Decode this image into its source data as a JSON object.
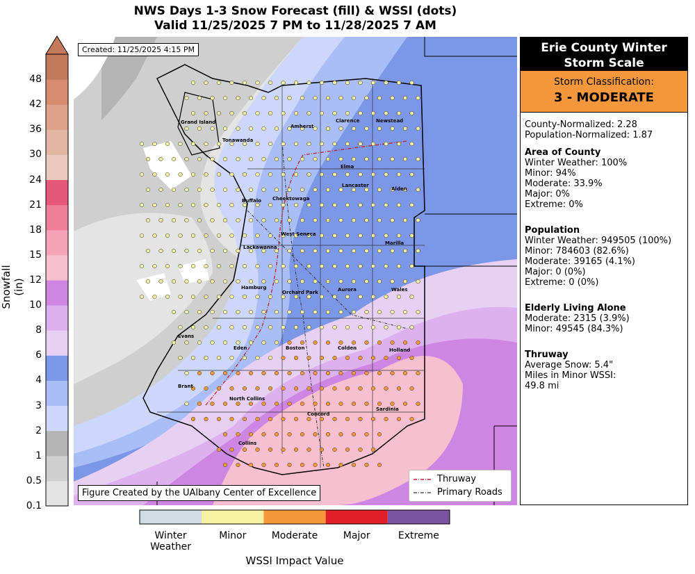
{
  "title": {
    "line1": "NWS Days 1-3 Snow Forecast (fill) & WSSI (dots)",
    "line2": "Valid 11/25/2025 7 PM to 11/28/2025 7 AM"
  },
  "created_label": "Created: 11/25/2025 4:15 PM",
  "credit_label": "Figure Created by the UAlbany Center of Excellence",
  "colorbar": {
    "axis_label": "Snowfall (in)",
    "ticks": [
      "0.1",
      "0.5",
      "1",
      "2",
      "3",
      "4",
      "6",
      "8",
      "10",
      "12",
      "15",
      "18",
      "21",
      "24",
      "30",
      "36",
      "42",
      "48"
    ],
    "colors": [
      "#e4e4e4",
      "#cfcfcf",
      "#b4b4b4",
      "#ccd7fb",
      "#a9bdf6",
      "#7c97e8",
      "#e8d0f5",
      "#ddb0ee",
      "#cf86e3",
      "#f7bfd0",
      "#f5a3b8",
      "#f07e98",
      "#e65878",
      "#ebcabd",
      "#e3b6a3",
      "#dea18a",
      "#d98b70",
      "#c27a5b"
    ]
  },
  "legend": {
    "thruway": "Thruway",
    "primary_roads": "Primary Roads",
    "thruway_color": "#c0202a",
    "roads_color": "#333333"
  },
  "towns": [
    {
      "name": "Grand Island"
    },
    {
      "name": "Tonawanda"
    },
    {
      "name": "Amherst"
    },
    {
      "name": "Clarence"
    },
    {
      "name": "Newstead"
    },
    {
      "name": "Elma"
    },
    {
      "name": "Lancaster"
    },
    {
      "name": "Alden"
    },
    {
      "name": "Buffalo"
    },
    {
      "name": "Cheektowaga"
    },
    {
      "name": "West Seneca"
    },
    {
      "name": "Lackawanna"
    },
    {
      "name": "Marilla"
    },
    {
      "name": "Hamburg"
    },
    {
      "name": "Orchard Park"
    },
    {
      "name": "Aurora"
    },
    {
      "name": "Wales"
    },
    {
      "name": "Evans"
    },
    {
      "name": "Eden"
    },
    {
      "name": "Boston"
    },
    {
      "name": "Colden"
    },
    {
      "name": "Holland"
    },
    {
      "name": "Brant"
    },
    {
      "name": "North Collins"
    },
    {
      "name": "Concord"
    },
    {
      "name": "Sardinia"
    },
    {
      "name": "Collins"
    }
  ],
  "panel": {
    "header": "Erie County Winter Storm Scale",
    "classification_label": "Storm Classification:",
    "classification_value": "3 - MODERATE",
    "classification_color": "#f5973a",
    "county_normalized": "County-Normalized: 2.28",
    "population_normalized": "Population-Normalized: 1.87",
    "area": {
      "title": "Area of County",
      "lines": [
        "Winter Weather: 100%",
        "Minor: 94%",
        "Moderate: 33.9%",
        "Major: 0%",
        "Extreme: 0%"
      ]
    },
    "population": {
      "title": "Population",
      "lines": [
        "Winter Weather: 949505 (100%)",
        "Minor: 784603 (82.6%)",
        "Moderate: 39165 (4.1%)",
        "Major: 0 (0%)",
        "Extreme: 0 (0%)"
      ]
    },
    "elderly": {
      "title": "Elderly Living Alone",
      "lines": [
        "Moderate: 2315 (3.9%)",
        "Minor: 49545 (84.3%)"
      ]
    },
    "thruway": {
      "title": "Thruway",
      "lines": [
        "Average Snow: 5.4\"",
        "Miles in Minor WSSI:",
        "49.8 mi"
      ]
    }
  },
  "wssi": {
    "title": "WSSI Impact Value",
    "categories": [
      {
        "label": "Winter\nWeather",
        "color": "#d1dce4"
      },
      {
        "label": "Minor",
        "color": "#f7f1a0"
      },
      {
        "label": "Moderate",
        "color": "#f5973a"
      },
      {
        "label": "Major",
        "color": "#e02028"
      },
      {
        "label": "Extreme",
        "color": "#7c53a1"
      }
    ]
  }
}
